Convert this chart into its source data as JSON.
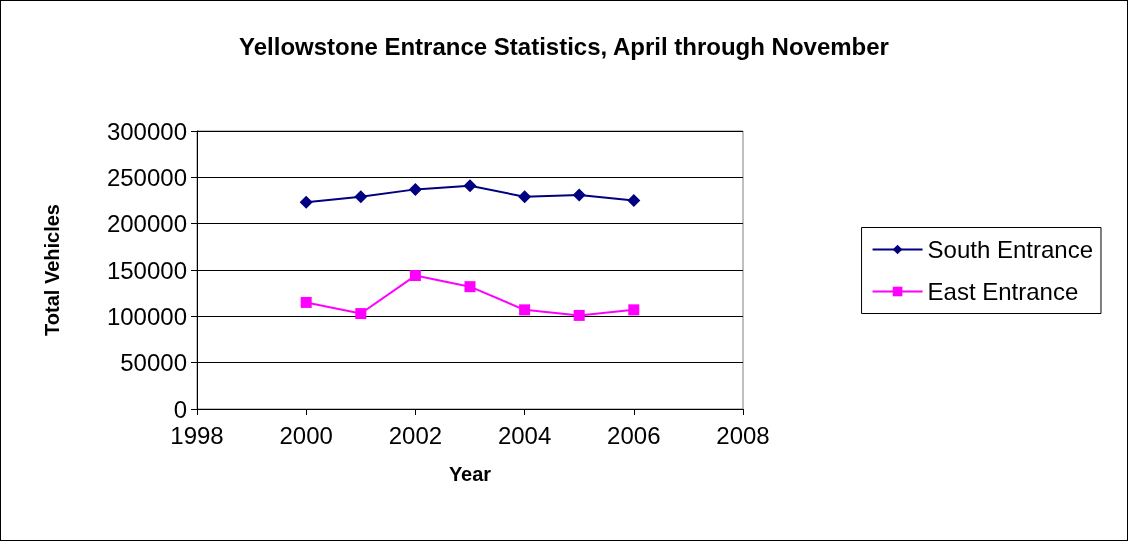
{
  "chart_data": {
    "type": "line",
    "title": "Yellowstone Entrance Statistics, April through November",
    "xlabel": "Year",
    "ylabel": "Total Vehicles",
    "x": [
      2000,
      2001,
      2002,
      2003,
      2004,
      2005,
      2006
    ],
    "series": [
      {
        "name": "South Entrance",
        "color": "#000080",
        "marker": "diamond",
        "values": [
          223000,
          229000,
          237000,
          241000,
          229000,
          231000,
          225000
        ]
      },
      {
        "name": "East Entrance",
        "color": "#ff00ff",
        "marker": "square",
        "values": [
          115000,
          103000,
          144000,
          132000,
          107000,
          101000,
          107000
        ]
      }
    ],
    "xlim": [
      1998,
      2008
    ],
    "xticks": [
      1998,
      2000,
      2002,
      2004,
      2006,
      2008
    ],
    "ylim": [
      0,
      300000
    ],
    "yticks": [
      0,
      50000,
      100000,
      150000,
      200000,
      250000,
      300000
    ],
    "grid": "y",
    "legend": "right",
    "line_style": "solid"
  }
}
